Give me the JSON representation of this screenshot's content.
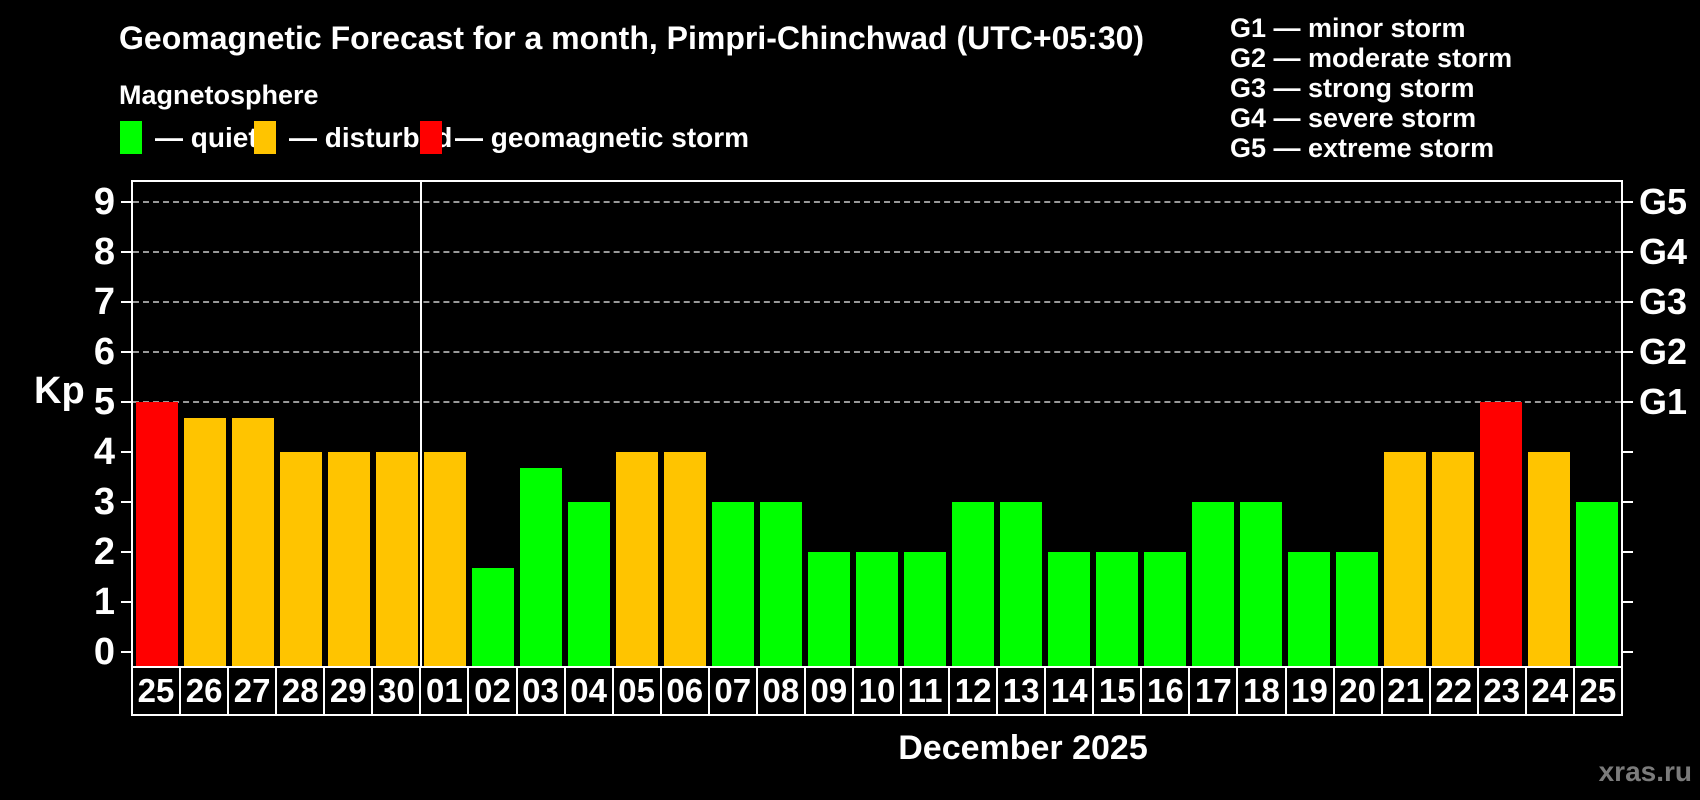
{
  "title": "Geomagnetic Forecast for a month, Pimpri-Chinchwad (UTC+05:30)",
  "subtitle": "Magnetosphere",
  "legend": {
    "items": [
      {
        "status": "quiet",
        "label": "— quiet"
      },
      {
        "status": "disturbed",
        "label": "— disturbed"
      },
      {
        "status": "storm",
        "label": "— geomagnetic storm"
      }
    ]
  },
  "g_scale_legend": [
    "G1 — minor storm",
    "G2 — moderate storm",
    "G3 — strong storm",
    "G4 — severe storm",
    "G5 — extreme storm"
  ],
  "footer": {
    "xaxis_title": "December 2025",
    "watermark": "xras.ru"
  },
  "chart_data": {
    "type": "bar",
    "title": "Geomagnetic Forecast for a month, Pimpri-Chinchwad (UTC+05:30)",
    "ylabel": "Kp",
    "ylim": [
      0,
      9
    ],
    "y_ticks": [
      0,
      1,
      2,
      3,
      4,
      5,
      6,
      7,
      8,
      9
    ],
    "gridlines_at": [
      5,
      6,
      7,
      8,
      9
    ],
    "grid_color": "#999999",
    "right_axis_labels": [
      {
        "kp": 5,
        "label": "G1"
      },
      {
        "kp": 6,
        "label": "G2"
      },
      {
        "kp": 7,
        "label": "G3"
      },
      {
        "kp": 8,
        "label": "G4"
      },
      {
        "kp": 9,
        "label": "G5"
      }
    ],
    "colors": {
      "quiet": "#00ff00",
      "disturbed": "#ffc400",
      "storm": "#ff0000"
    },
    "separator_after_bar_index": 5,
    "bars": [
      {
        "day": "25",
        "kp": 5,
        "status": "storm"
      },
      {
        "day": "26",
        "kp": 4.67,
        "status": "disturbed"
      },
      {
        "day": "27",
        "kp": 4.67,
        "status": "disturbed"
      },
      {
        "day": "28",
        "kp": 4,
        "status": "disturbed"
      },
      {
        "day": "29",
        "kp": 4,
        "status": "disturbed"
      },
      {
        "day": "30",
        "kp": 4,
        "status": "disturbed"
      },
      {
        "day": "01",
        "kp": 4,
        "status": "disturbed"
      },
      {
        "day": "02",
        "kp": 1.67,
        "status": "quiet"
      },
      {
        "day": "03",
        "kp": 3.67,
        "status": "quiet"
      },
      {
        "day": "04",
        "kp": 3,
        "status": "quiet"
      },
      {
        "day": "05",
        "kp": 4,
        "status": "disturbed"
      },
      {
        "day": "06",
        "kp": 4,
        "status": "disturbed"
      },
      {
        "day": "07",
        "kp": 3,
        "status": "quiet"
      },
      {
        "day": "08",
        "kp": 3,
        "status": "quiet"
      },
      {
        "day": "09",
        "kp": 2,
        "status": "quiet"
      },
      {
        "day": "10",
        "kp": 2,
        "status": "quiet"
      },
      {
        "day": "11",
        "kp": 2,
        "status": "quiet"
      },
      {
        "day": "12",
        "kp": 3,
        "status": "quiet"
      },
      {
        "day": "13",
        "kp": 3,
        "status": "quiet"
      },
      {
        "day": "14",
        "kp": 2,
        "status": "quiet"
      },
      {
        "day": "15",
        "kp": 2,
        "status": "quiet"
      },
      {
        "day": "16",
        "kp": 2,
        "status": "quiet"
      },
      {
        "day": "17",
        "kp": 3,
        "status": "quiet"
      },
      {
        "day": "18",
        "kp": 3,
        "status": "quiet"
      },
      {
        "day": "19",
        "kp": 2,
        "status": "quiet"
      },
      {
        "day": "20",
        "kp": 2,
        "status": "quiet"
      },
      {
        "day": "21",
        "kp": 4,
        "status": "disturbed"
      },
      {
        "day": "22",
        "kp": 4,
        "status": "disturbed"
      },
      {
        "day": "23",
        "kp": 5,
        "status": "storm"
      },
      {
        "day": "24",
        "kp": 4,
        "status": "disturbed"
      },
      {
        "day": "25",
        "kp": 3,
        "status": "quiet"
      }
    ]
  }
}
